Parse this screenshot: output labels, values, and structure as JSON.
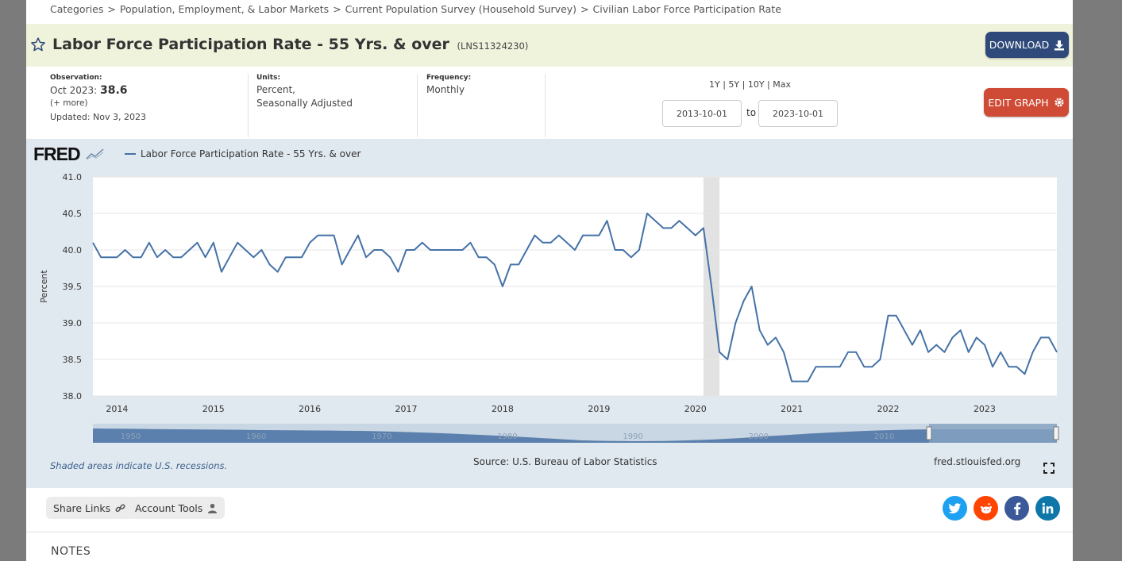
{
  "breadcrumb": [
    "Categories",
    "Population, Employment, & Labor Markets",
    "Current Population Survey (Household Survey)",
    "Civilian Labor Force Participation Rate"
  ],
  "header": {
    "title": "Labor Force Participation Rate - 55 Yrs. & over",
    "series_id": "(LNS11324230)",
    "download_label": "DOWNLOAD",
    "edit_label": "EDIT GRAPH"
  },
  "meta": {
    "observation_label": "Observation:",
    "observation_date": "Oct 2023:",
    "observation_value": "38.6",
    "more": "(+ more)",
    "updated": "Updated: Nov 3, 2023",
    "units_label": "Units:",
    "units_line1": "Percent,",
    "units_line2": "Seasonally Adjusted",
    "frequency_label": "Frequency:",
    "frequency": "Monthly"
  },
  "range": {
    "links": "1Y | 5Y | 10Y | Max",
    "start": "2013-10-01",
    "end": "2023-10-01",
    "to": "to"
  },
  "chart": {
    "logo": "FRED",
    "legend": "Labor Force Participation Rate - 55 Yrs. & over",
    "shade_note": "Shaded areas indicate U.S. recessions.",
    "source": "Source: U.S. Bureau of Labor Statistics",
    "url": "fred.stlouisfed.org"
  },
  "footer": {
    "share_links": "Share Links",
    "account_tools": "Account Tools",
    "notes": "NOTES"
  },
  "colors": {
    "series": "#4572a7",
    "download": "#2f4a7a",
    "edit": "#cf4b35",
    "title_bg": "#f0f3dc",
    "chart_bg": "#e1e9f0"
  },
  "chart_data": {
    "type": "line",
    "ylabel": "Percent",
    "ylim": [
      38.0,
      41.0
    ],
    "yticks": [
      38.0,
      38.5,
      39.0,
      39.5,
      40.0,
      40.5,
      41.0
    ],
    "xlim": [
      "2013-10",
      "2023-10"
    ],
    "xticks": [
      "2014",
      "2015",
      "2016",
      "2017",
      "2018",
      "2019",
      "2020",
      "2021",
      "2022",
      "2023"
    ],
    "recession": {
      "start": "2020-02",
      "end": "2020-04"
    },
    "navigator_labels": [
      "1950",
      "1960",
      "1970",
      "1980",
      "1990",
      "2000",
      "2010"
    ],
    "series": [
      {
        "name": "Labor Force Participation Rate - 55 Yrs. & over",
        "start": "2013-10",
        "frequency": "monthly",
        "values": [
          40.1,
          39.9,
          39.9,
          39.9,
          40.0,
          39.9,
          39.9,
          40.1,
          39.9,
          40.0,
          39.9,
          39.9,
          40.0,
          40.1,
          39.9,
          40.1,
          39.7,
          39.9,
          40.1,
          40.0,
          39.9,
          40.0,
          39.8,
          39.7,
          39.9,
          39.9,
          39.9,
          40.1,
          40.2,
          40.2,
          40.2,
          39.8,
          40.0,
          40.2,
          39.9,
          40.0,
          40.0,
          39.9,
          39.7,
          40.0,
          40.0,
          40.1,
          40.0,
          40.0,
          40.0,
          40.0,
          40.0,
          40.1,
          39.9,
          39.9,
          39.8,
          39.5,
          39.8,
          39.8,
          40.0,
          40.2,
          40.1,
          40.1,
          40.2,
          40.1,
          40.0,
          40.2,
          40.2,
          40.2,
          40.4,
          40.0,
          40.0,
          39.9,
          40.0,
          40.5,
          40.4,
          40.3,
          40.3,
          40.4,
          40.3,
          40.2,
          40.3,
          39.5,
          38.6,
          38.5,
          39.0,
          39.3,
          39.5,
          38.9,
          38.7,
          38.8,
          38.6,
          38.2,
          38.2,
          38.2,
          38.4,
          38.4,
          38.4,
          38.4,
          38.6,
          38.6,
          38.4,
          38.4,
          38.5,
          39.1,
          39.1,
          38.9,
          38.7,
          38.9,
          38.6,
          38.7,
          38.6,
          38.8,
          38.9,
          38.6,
          38.8,
          38.7,
          38.4,
          38.6,
          38.4,
          38.4,
          38.3,
          38.6,
          38.8,
          38.8,
          38.6
        ]
      }
    ]
  }
}
